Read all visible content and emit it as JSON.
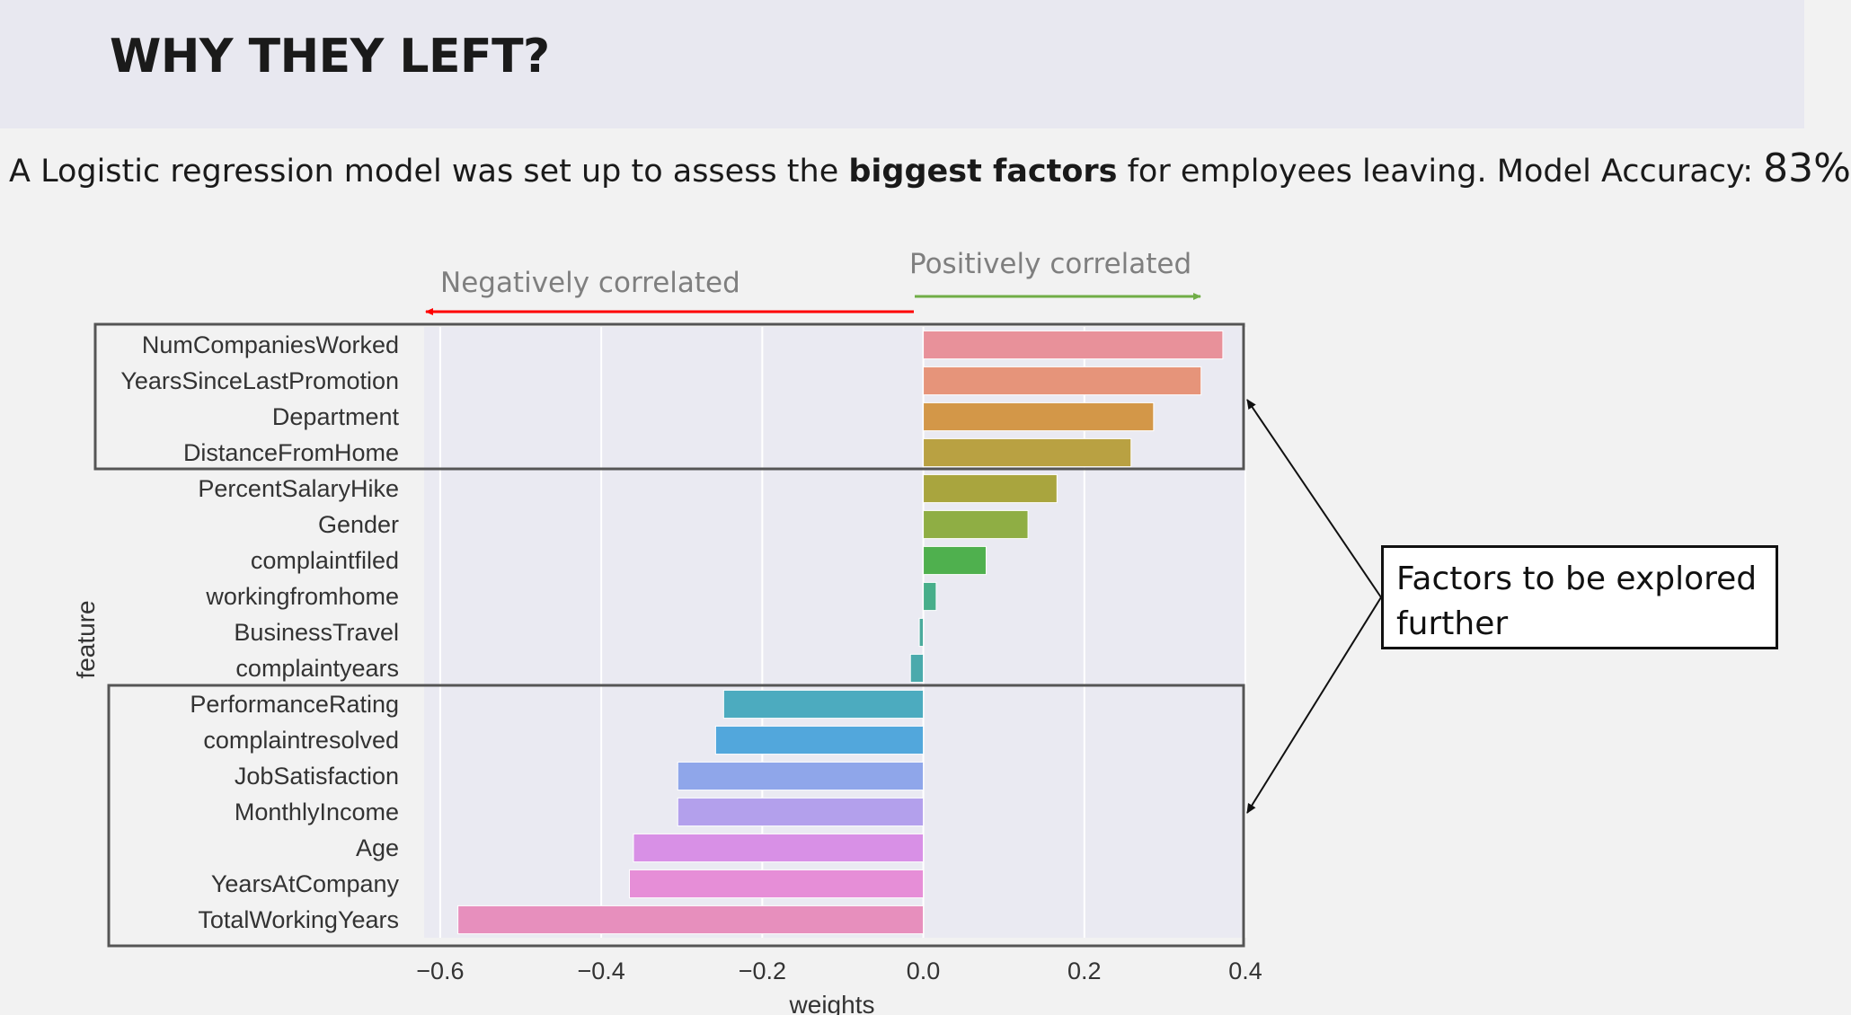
{
  "slide": {
    "title": "WHY THEY LEFT?",
    "subtitle_pre": "A Logistic regression model was set up to assess the ",
    "subtitle_bold": "biggest factors",
    "subtitle_post": " for employees leaving. Model Accuracy: ",
    "accuracy": "83%"
  },
  "annotations": {
    "negative_label": "Negatively correlated",
    "positive_label": "Positively correlated",
    "negative_color": "#ff0000",
    "positive_color": "#70ad47",
    "callout_text": "Factors to be explored further"
  },
  "chart_data": {
    "type": "bar",
    "orientation": "horizontal",
    "ylabel": "feature",
    "xlabel": "weights",
    "xlim": [
      -0.62,
      0.4
    ],
    "xticks": [
      -0.6,
      -0.4,
      -0.2,
      0.0,
      0.2,
      0.4
    ],
    "xtick_labels": [
      "−0.6",
      "−0.4",
      "−0.2",
      "0.0",
      "0.2",
      "0.4"
    ],
    "grid": true,
    "categories": [
      "NumCompaniesWorked",
      "YearsSinceLastPromotion",
      "Department",
      "DistanceFromHome",
      "PercentSalaryHike",
      "Gender",
      "complaintfiled",
      "workingfromhome",
      "BusinessTravel",
      "complaintyears",
      "PerformanceRating",
      "complaintresolved",
      "JobSatisfaction",
      "MonthlyIncome",
      "Age",
      "YearsAtCompany",
      "TotalWorkingYears"
    ],
    "values": [
      0.372,
      0.345,
      0.286,
      0.258,
      0.166,
      0.13,
      0.078,
      0.016,
      -0.005,
      -0.016,
      -0.248,
      -0.258,
      -0.305,
      -0.305,
      -0.36,
      -0.365,
      -0.578
    ],
    "colors": [
      "#e8919a",
      "#e6947a",
      "#d39748",
      "#b9a142",
      "#a9a53e",
      "#8fae44",
      "#4fb04e",
      "#47ae8a",
      "#4aaa9c",
      "#4aaaac",
      "#4cabbf",
      "#52a7dc",
      "#8fa6ea",
      "#b3a0ec",
      "#d890e6",
      "#e68ed7",
      "#e78fbd"
    ]
  }
}
